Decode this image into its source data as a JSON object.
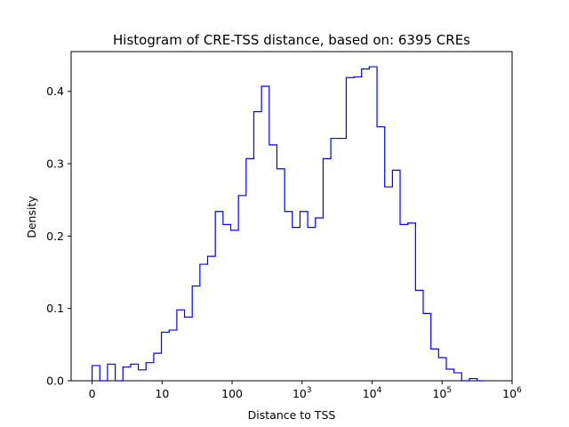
{
  "chart_data": {
    "type": "histogram-step",
    "title": "Histogram of CRE-TSS distance, based on: 6395 CREs",
    "xlabel": "Distance to TSS",
    "ylabel": "Density",
    "line_color": "#0000ff",
    "xlim": [
      -0.3,
      6.0
    ],
    "ylim": [
      0,
      0.455
    ],
    "x_ticks": [
      {
        "value": 0,
        "base": "0",
        "exp": ""
      },
      {
        "value": 1,
        "base": "10",
        "exp": ""
      },
      {
        "value": 2,
        "base": "100",
        "exp": ""
      },
      {
        "value": 3,
        "base": "10",
        "exp": "3"
      },
      {
        "value": 4,
        "base": "10",
        "exp": "4"
      },
      {
        "value": 5,
        "base": "10",
        "exp": "5"
      },
      {
        "value": 6,
        "base": "10",
        "exp": "6"
      }
    ],
    "y_ticks": [
      {
        "value": 0.0,
        "label": "0.0"
      },
      {
        "value": 0.1,
        "label": "0.1"
      },
      {
        "value": 0.2,
        "label": "0.2"
      },
      {
        "value": 0.3,
        "label": "0.3"
      },
      {
        "value": 0.4,
        "label": "0.4"
      }
    ],
    "bin_width": 0.11,
    "bin_start": 0.0,
    "values": [
      0.021,
      0.0,
      0.023,
      0.0,
      0.019,
      0.023,
      0.015,
      0.025,
      0.038,
      0.067,
      0.07,
      0.098,
      0.088,
      0.131,
      0.161,
      0.172,
      0.234,
      0.216,
      0.208,
      0.256,
      0.307,
      0.372,
      0.407,
      0.326,
      0.293,
      0.234,
      0.212,
      0.234,
      0.212,
      0.225,
      0.307,
      0.335,
      0.335,
      0.419,
      0.42,
      0.431,
      0.434,
      0.351,
      0.268,
      0.291,
      0.216,
      0.218,
      0.125,
      0.093,
      0.044,
      0.032,
      0.016,
      0.011,
      0.0,
      0.003,
      0.0
    ]
  }
}
